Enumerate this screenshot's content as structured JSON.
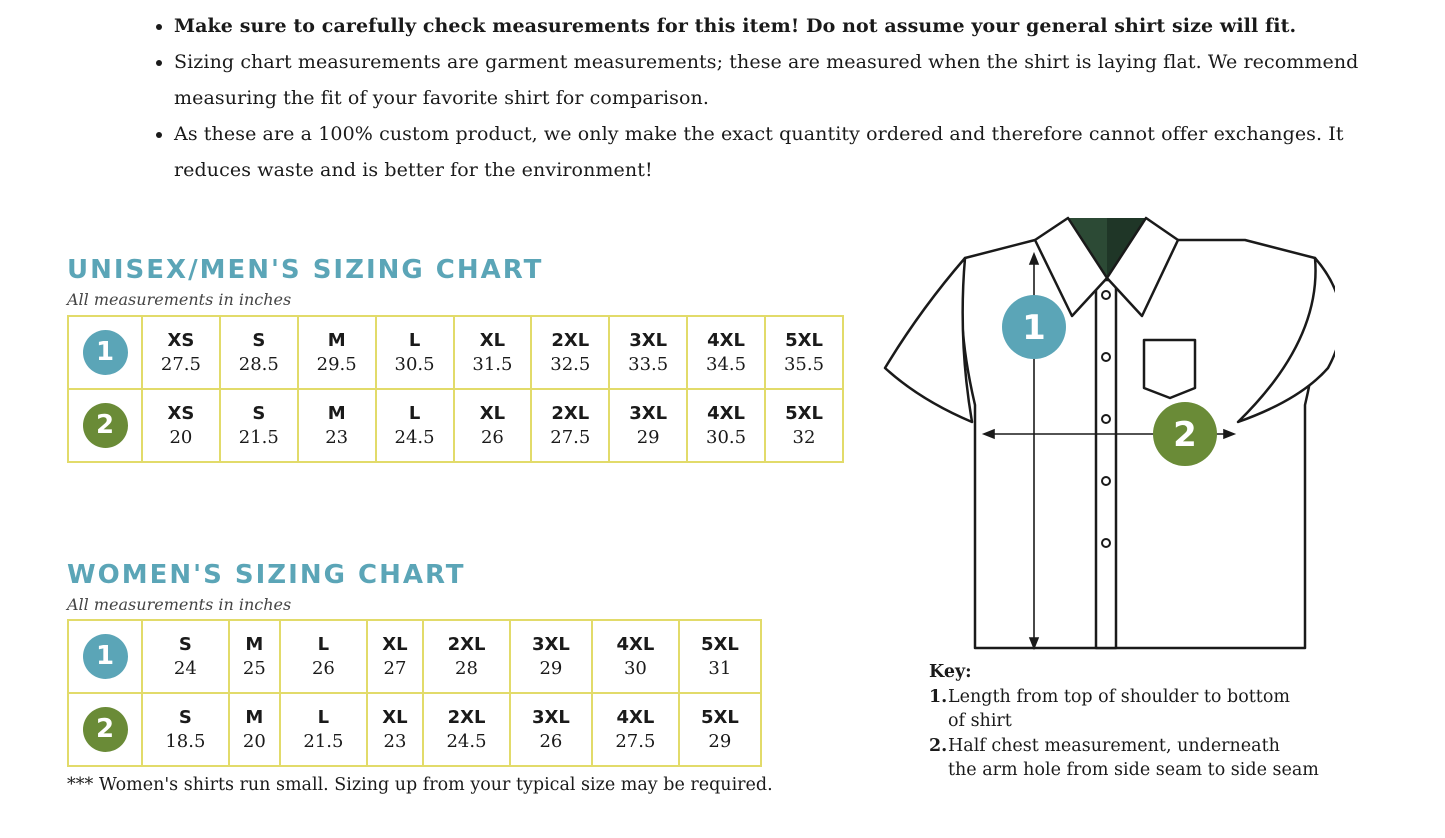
{
  "notes": [
    "Make sure to carefully check measurements for this item! Do not assume your general shirt size will fit.",
    "Sizing chart measurements are garment measurements; these are measured when the shirt is laying flat. We recommend measuring the fit of your favorite shirt for comparison.",
    "As these are a 100% custom product, we only make the exact quantity ordered and therefore cannot offer exchanges. It reduces waste and is better for the environment!"
  ],
  "unisex": {
    "title": "UNISEX/MEN'S SIZING CHART",
    "subtitle": "All measurements in inches",
    "rows": [
      {
        "label": "1",
        "cells": [
          {
            "size": "XS",
            "value": "27.5"
          },
          {
            "size": "S",
            "value": "28.5"
          },
          {
            "size": "M",
            "value": "29.5"
          },
          {
            "size": "L",
            "value": "30.5"
          },
          {
            "size": "XL",
            "value": "31.5"
          },
          {
            "size": "2XL",
            "value": "32.5"
          },
          {
            "size": "3XL",
            "value": "33.5"
          },
          {
            "size": "4XL",
            "value": "34.5"
          },
          {
            "size": "5XL",
            "value": "35.5"
          }
        ]
      },
      {
        "label": "2",
        "cells": [
          {
            "size": "XS",
            "value": "20"
          },
          {
            "size": "S",
            "value": "21.5"
          },
          {
            "size": "M",
            "value": "23"
          },
          {
            "size": "L",
            "value": "24.5"
          },
          {
            "size": "XL",
            "value": "26"
          },
          {
            "size": "2XL",
            "value": "27.5"
          },
          {
            "size": "3XL",
            "value": "29"
          },
          {
            "size": "4XL",
            "value": "30.5"
          },
          {
            "size": "5XL",
            "value": "32"
          }
        ]
      }
    ]
  },
  "womens": {
    "title": "WOMEN'S SIZING CHART",
    "subtitle": "All measurements in inches",
    "rows": [
      {
        "label": "1",
        "cells": [
          {
            "size": "S",
            "value": "24"
          },
          {
            "size": "M",
            "value": "25"
          },
          {
            "size": "L",
            "value": "26"
          },
          {
            "size": "XL",
            "value": "27"
          },
          {
            "size": "2XL",
            "value": "28"
          },
          {
            "size": "3XL",
            "value": "29"
          },
          {
            "size": "4XL",
            "value": "30"
          },
          {
            "size": "5XL",
            "value": "31"
          }
        ]
      },
      {
        "label": "2",
        "cells": [
          {
            "size": "S",
            "value": "18.5"
          },
          {
            "size": "M",
            "value": "20"
          },
          {
            "size": "L",
            "value": "21.5"
          },
          {
            "size": "XL",
            "value": "23"
          },
          {
            "size": "2XL",
            "value": "24.5"
          },
          {
            "size": "3XL",
            "value": "26"
          },
          {
            "size": "4XL",
            "value": "27.5"
          },
          {
            "size": "5XL",
            "value": "29"
          }
        ]
      }
    ],
    "footnote": "*** Women's shirts run small. Sizing up from your typical size may be required."
  },
  "diagram": {
    "label1": "1",
    "label2": "2"
  },
  "key": {
    "title": "Key:",
    "items": [
      {
        "num": "1.",
        "line1": "Length from top of shoulder to bottom",
        "line2": "of shirt"
      },
      {
        "num": "2.",
        "line1": "Half chest measurement, underneath",
        "line2": "the arm hole from side seam to side seam"
      }
    ]
  },
  "colors": {
    "teal": "#5ba5b7",
    "green": "#6a8b37",
    "border": "#e2db6a",
    "collar": "#2c4a35"
  }
}
